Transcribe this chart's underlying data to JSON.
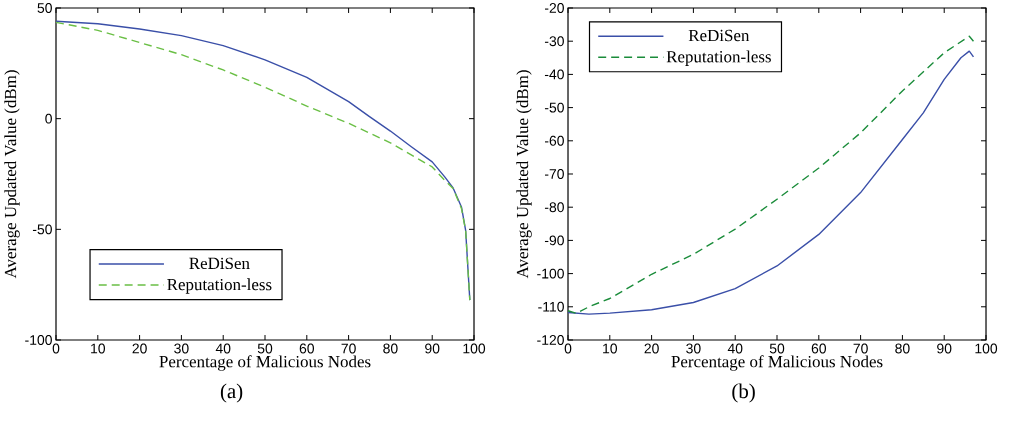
{
  "chart_data": [
    {
      "type": "line",
      "xlabel": "Percentage of Malicious Nodes",
      "ylabel": "Average Updated Value (dBm)",
      "annotations": [
        "(a)"
      ],
      "xlim": [
        0,
        100
      ],
      "ylim": [
        -100,
        50
      ],
      "xticks": [
        0,
        10,
        20,
        30,
        40,
        50,
        60,
        70,
        80,
        90,
        100
      ],
      "yticks": [
        -100,
        -50,
        0,
        50
      ],
      "legend": "bottom left",
      "grid": false,
      "marker": "none",
      "series": [
        {
          "name": "ReDiSen",
          "color": "#3a4fa8",
          "line_style": "solid",
          "x": [
            0,
            10,
            20,
            30,
            40,
            50,
            60,
            70,
            75,
            80,
            85,
            90,
            93,
            95,
            97,
            98,
            99
          ],
          "values": [
            44,
            42.9,
            40.5,
            37.5,
            33,
            26.6,
            18.7,
            7.7,
            0.9,
            -5.6,
            -12.7,
            -19.5,
            -26.3,
            -31.3,
            -39.9,
            -50.5,
            -82
          ]
        },
        {
          "name": "Reputation-less",
          "color": "#6abf45",
          "line_style": "dashed",
          "x": [
            0,
            10,
            20,
            30,
            40,
            50,
            60,
            70,
            80,
            90,
            93,
            95,
            97,
            98,
            99
          ],
          "values": [
            43.5,
            39.9,
            34.4,
            28.9,
            22,
            14.2,
            5.7,
            -2.1,
            -10.9,
            -21.8,
            -27.9,
            -31.5,
            -40.6,
            -50.5,
            -82
          ]
        }
      ]
    },
    {
      "type": "line",
      "xlabel": "Percentage of Malicious Nodes",
      "ylabel": "Average Updated Value  (dBm)",
      "annotations": [
        "(b)"
      ],
      "xlim": [
        0,
        100
      ],
      "ylim": [
        -120,
        -20
      ],
      "xticks": [
        0,
        10,
        20,
        30,
        40,
        50,
        60,
        70,
        80,
        90,
        100
      ],
      "yticks": [
        -120,
        -110,
        -100,
        -90,
        -80,
        -70,
        -60,
        -50,
        -40,
        -30,
        -20
      ],
      "legend": "top left",
      "grid": false,
      "marker": "none",
      "series": [
        {
          "name": "ReDiSen",
          "color": "#3a4fa8",
          "line_style": "solid",
          "x": [
            0,
            5,
            10,
            20,
            30,
            40,
            50,
            60,
            70,
            80,
            85,
            90,
            94,
            96,
            97
          ],
          "values": [
            -111.7,
            -112.2,
            -111.9,
            -110.9,
            -108.7,
            -104.5,
            -97.7,
            -88.2,
            -75.6,
            -59.6,
            -51.6,
            -41.5,
            -35,
            -33,
            -34.7
          ]
        },
        {
          "name": "Reputation-less",
          "color": "#1a8c3a",
          "line_style": "dashed",
          "x": [
            0,
            2,
            5,
            10,
            20,
            30,
            40,
            50,
            60,
            70,
            80,
            90,
            96,
            97
          ],
          "values": [
            -111.2,
            -112,
            -110,
            -107.5,
            -100.2,
            -94.2,
            -86.6,
            -77.6,
            -68.2,
            -57.6,
            -45,
            -33.5,
            -28.5,
            -30
          ]
        }
      ]
    }
  ]
}
